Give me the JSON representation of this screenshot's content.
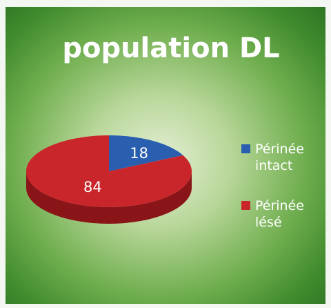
{
  "chart_data": {
    "type": "pie",
    "title": "population DL",
    "categories": [
      "Périnée intact",
      "Périnée lésé"
    ],
    "values": [
      18,
      84
    ],
    "colors": [
      "#2a5fb0",
      "#c8262a"
    ],
    "side_colors": [
      "#173d78",
      "#8a1518"
    ],
    "legend": "right"
  }
}
